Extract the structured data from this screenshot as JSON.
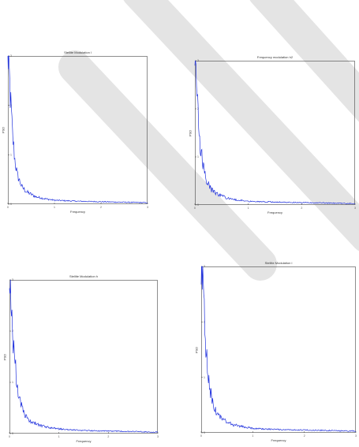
{
  "colors": {
    "line": "#2233dd",
    "axes": "#444444",
    "watermark": "#e4e4e4"
  },
  "chart_data": [
    {
      "type": "line",
      "title": "Stellite Modulation l",
      "xlabel": "Frequency",
      "ylabel": "PSD",
      "xticks": [
        "0",
        "1",
        "2",
        "3"
      ],
      "yticks": [
        "0",
        "1",
        "2",
        "3"
      ],
      "xlim": [
        0,
        3
      ],
      "ylim": [
        0,
        3
      ],
      "grid": false,
      "series": [
        {
          "x": [
            0,
            0.02,
            0.05,
            0.1,
            0.15,
            0.2,
            0.3,
            0.4,
            0.6,
            0.8,
            1.0,
            1.5,
            2.0,
            2.5,
            3.0
          ],
          "y": [
            3.0,
            2.8,
            2.2,
            1.4,
            0.9,
            0.6,
            0.35,
            0.25,
            0.15,
            0.11,
            0.08,
            0.06,
            0.05,
            0.04,
            0.03
          ]
        }
      ]
    },
    {
      "type": "line",
      "title": "Frequency modulation h2",
      "xlabel": "Frequency",
      "ylabel": "PSD",
      "xticks": [
        "0",
        "1",
        "2",
        "3"
      ],
      "yticks": [
        "0",
        "1",
        "2",
        "3"
      ],
      "xlim": [
        0,
        3
      ],
      "ylim": [
        0,
        3
      ],
      "grid": false,
      "series": [
        {
          "x": [
            0,
            0.02,
            0.05,
            0.1,
            0.15,
            0.2,
            0.3,
            0.4,
            0.6,
            0.8,
            1.0,
            1.5,
            2.0,
            2.5,
            3.0
          ],
          "y": [
            2.9,
            2.7,
            2.1,
            1.3,
            0.85,
            0.55,
            0.33,
            0.24,
            0.14,
            0.1,
            0.08,
            0.06,
            0.05,
            0.04,
            0.03
          ]
        }
      ]
    },
    {
      "type": "line",
      "title": "Stellite Modulation h",
      "xlabel": "Frequency",
      "ylabel": "PSD",
      "xticks": [
        "0",
        "1",
        "2",
        "3"
      ],
      "yticks": [
        "0",
        "1",
        "2",
        "3"
      ],
      "xlim": [
        0,
        3
      ],
      "ylim": [
        0,
        3
      ],
      "grid": false,
      "series": [
        {
          "x": [
            0,
            0.02,
            0.05,
            0.1,
            0.15,
            0.2,
            0.3,
            0.4,
            0.6,
            0.8,
            1.0,
            1.5,
            2.0,
            2.5,
            3.0
          ],
          "y": [
            3.0,
            2.85,
            2.3,
            1.5,
            1.0,
            0.65,
            0.37,
            0.26,
            0.16,
            0.12,
            0.09,
            0.06,
            0.05,
            0.04,
            0.03
          ]
        }
      ]
    },
    {
      "type": "line",
      "title": "Stellite Modulation l",
      "xlabel": "Frequency",
      "ylabel": "PSD",
      "xticks": [
        "0",
        "1",
        "2",
        "3"
      ],
      "yticks": [
        "0",
        "1",
        "2",
        "3"
      ],
      "xlim": [
        0,
        3
      ],
      "ylim": [
        0,
        3
      ],
      "grid": false,
      "series": [
        {
          "x": [
            0,
            0.02,
            0.05,
            0.1,
            0.15,
            0.2,
            0.3,
            0.4,
            0.6,
            0.8,
            1.0,
            1.5,
            2.0,
            2.5,
            3.0
          ],
          "y": [
            3.0,
            2.9,
            2.3,
            1.45,
            0.95,
            0.62,
            0.36,
            0.25,
            0.15,
            0.11,
            0.08,
            0.06,
            0.05,
            0.04,
            0.03
          ]
        }
      ]
    }
  ]
}
